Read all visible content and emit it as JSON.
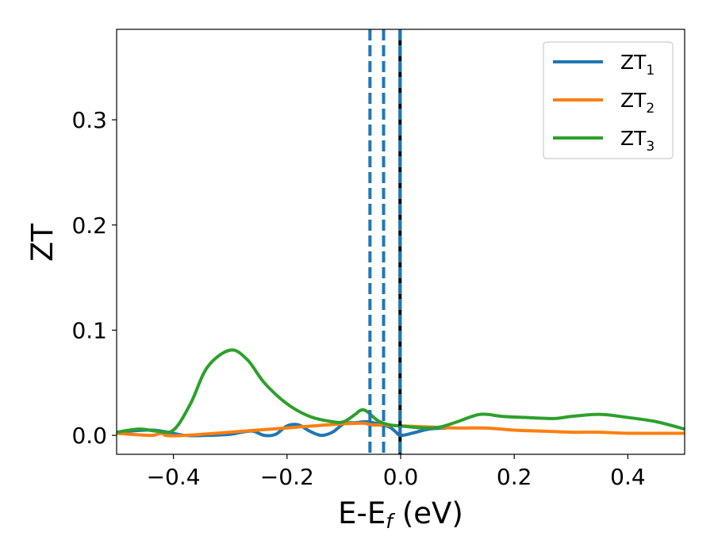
{
  "chart_data": {
    "type": "line",
    "xlabel_main": "E-E",
    "xlabel_sub": "f",
    "xlabel_unit": " (eV)",
    "ylabel": "ZT",
    "xlim": [
      -0.5,
      0.5
    ],
    "ylim": [
      -0.018,
      0.386
    ],
    "xticks": [
      -0.4,
      -0.2,
      0.0,
      0.2,
      0.4
    ],
    "xtick_labels": [
      "−0.4",
      "−0.2",
      "0.0",
      "0.2",
      "0.4"
    ],
    "yticks": [
      0.0,
      0.1,
      0.2,
      0.3
    ],
    "ytick_labels": [
      "0.0",
      "0.1",
      "0.2",
      "0.3"
    ],
    "grid": false,
    "legend_position": "top-right",
    "series": [
      {
        "name": "ZT",
        "name_sub": "1",
        "color": "#1f77b4",
        "points": [
          [
            -0.5,
            0.003
          ],
          [
            -0.45,
            0.005
          ],
          [
            -0.42,
            0.004
          ],
          [
            -0.38,
            0.0
          ],
          [
            -0.34,
            0.0
          ],
          [
            -0.3,
            0.001
          ],
          [
            -0.28,
            0.003
          ],
          [
            -0.26,
            0.004
          ],
          [
            -0.24,
            0.0
          ],
          [
            -0.22,
            0.001
          ],
          [
            -0.2,
            0.009
          ],
          [
            -0.18,
            0.01
          ],
          [
            -0.16,
            0.004
          ],
          [
            -0.14,
            0.0
          ],
          [
            -0.12,
            0.003
          ],
          [
            -0.1,
            0.011
          ],
          [
            -0.08,
            0.012
          ],
          [
            -0.06,
            0.013
          ],
          [
            -0.04,
            0.011
          ],
          [
            -0.02,
            0.008
          ],
          [
            -0.01,
            0.004
          ],
          [
            0.0,
            0.0
          ],
          [
            0.02,
            0.002
          ],
          [
            0.05,
            0.006
          ],
          [
            0.08,
            0.007
          ]
        ]
      },
      {
        "name": "ZT",
        "name_sub": "2",
        "color": "#ff7f0e",
        "points": [
          [
            -0.5,
            0.002
          ],
          [
            -0.44,
            0.0
          ],
          [
            -0.42,
            0.002
          ],
          [
            -0.38,
            0.0
          ],
          [
            -0.1,
            0.011
          ],
          [
            -0.05,
            0.01
          ],
          [
            0.0,
            0.009
          ],
          [
            0.05,
            0.008
          ],
          [
            0.1,
            0.007
          ],
          [
            0.15,
            0.007
          ],
          [
            0.2,
            0.005
          ],
          [
            0.25,
            0.004
          ],
          [
            0.3,
            0.003
          ],
          [
            0.35,
            0.003
          ],
          [
            0.4,
            0.002
          ],
          [
            0.5,
            0.002
          ]
        ]
      },
      {
        "name": "ZT",
        "name_sub": "3",
        "color": "#2ca02c",
        "points": [
          [
            -0.5,
            0.003
          ],
          [
            -0.46,
            0.006
          ],
          [
            -0.43,
            0.004
          ],
          [
            -0.4,
            0.005
          ],
          [
            -0.37,
            0.03
          ],
          [
            -0.34,
            0.065
          ],
          [
            -0.3,
            0.081
          ],
          [
            -0.27,
            0.072
          ],
          [
            -0.24,
            0.05
          ],
          [
            -0.2,
            0.03
          ],
          [
            -0.16,
            0.018
          ],
          [
            -0.12,
            0.013
          ],
          [
            -0.1,
            0.013
          ],
          [
            -0.08,
            0.02
          ],
          [
            -0.07,
            0.024
          ],
          [
            -0.06,
            0.023
          ],
          [
            -0.04,
            0.014
          ],
          [
            -0.02,
            0.01
          ],
          [
            0.0,
            0.009
          ],
          [
            0.04,
            0.007
          ],
          [
            0.07,
            0.008
          ],
          [
            0.1,
            0.013
          ],
          [
            0.14,
            0.02
          ],
          [
            0.18,
            0.018
          ],
          [
            0.22,
            0.017
          ],
          [
            0.27,
            0.016
          ],
          [
            0.3,
            0.018
          ],
          [
            0.35,
            0.02
          ],
          [
            0.4,
            0.017
          ],
          [
            0.45,
            0.013
          ],
          [
            0.5,
            0.006
          ]
        ]
      }
    ],
    "vlines": [
      {
        "x": -0.054,
        "style": "dashed",
        "color": "#1f77b4"
      },
      {
        "x": -0.03,
        "style": "dashed",
        "color": "#1f77b4"
      },
      {
        "x": -0.001,
        "style": "solid",
        "color": "#000000"
      },
      {
        "x": -0.001,
        "style": "dashed",
        "color": "#1f77b4"
      }
    ]
  }
}
